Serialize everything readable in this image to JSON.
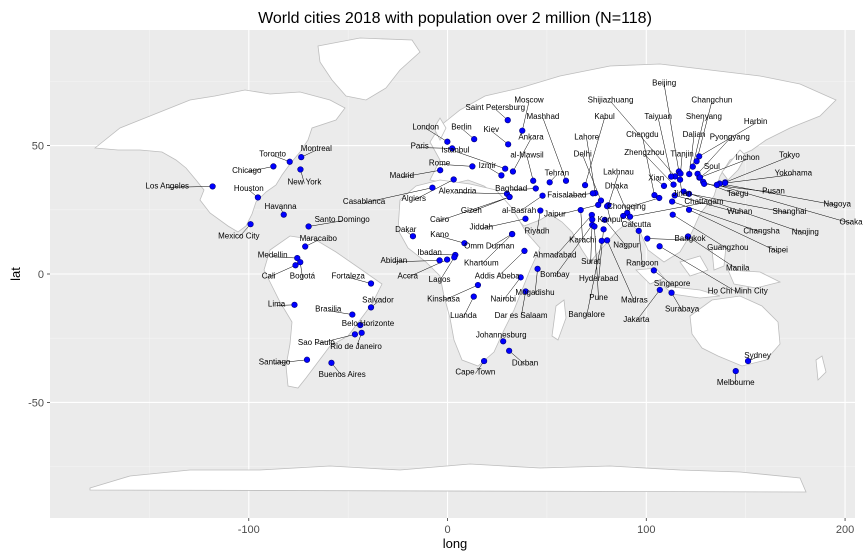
{
  "chart_data": {
    "type": "scatter",
    "title": "World cities 2018 with population over 2 million (N=118)",
    "xlabel": "long",
    "ylabel": "lat",
    "xlim": [
      -200,
      205
    ],
    "ylim": [
      -95,
      95
    ],
    "x_ticks": [
      -100,
      0,
      100,
      200
    ],
    "y_ticks": [
      -50,
      0,
      50
    ],
    "x_tick_labels": [
      "-100",
      "0",
      "100",
      "200"
    ],
    "y_tick_labels": [
      "-50",
      "0",
      "50"
    ],
    "panel_background": "#ebebeb",
    "grid": true,
    "land_color": "#ffffff",
    "border_color": "#bdbdbd",
    "point_color": "#0000ff",
    "points": [
      {
        "name": "Los Angeles",
        "x": -118.2,
        "y": 34.1,
        "lx": -141,
        "ly": 34.5
      },
      {
        "name": "Chicago",
        "x": -87.6,
        "y": 41.9,
        "lx": -101,
        "ly": 40.5
      },
      {
        "name": "Toronto",
        "x": -79.4,
        "y": 43.7,
        "lx": -88,
        "ly": 47
      },
      {
        "name": "Montreal",
        "x": -73.6,
        "y": 45.5,
        "lx": -66,
        "ly": 49
      },
      {
        "name": "New York",
        "x": -74.0,
        "y": 40.7,
        "lx": -72,
        "ly": 36
      },
      {
        "name": "Houston",
        "x": -95.4,
        "y": 29.8,
        "lx": -100,
        "ly": 33.5
      },
      {
        "name": "Havanna",
        "x": -82.4,
        "y": 23.1,
        "lx": -84,
        "ly": 26.5
      },
      {
        "name": "Mexico City",
        "x": -99.1,
        "y": 19.4,
        "lx": -105,
        "ly": 15
      },
      {
        "name": "Santo Domingo",
        "x": -69.9,
        "y": 18.5,
        "lx": -53,
        "ly": 21.5
      },
      {
        "name": "Maracaibo",
        "x": -71.6,
        "y": 10.7,
        "lx": -65,
        "ly": 14
      },
      {
        "name": "Medellin",
        "x": -75.6,
        "y": 6.2,
        "lx": -88,
        "ly": 7.5
      },
      {
        "name": "Bogotá",
        "x": -74.1,
        "y": 4.6,
        "lx": -73,
        "ly": -0.5
      },
      {
        "name": "Cali",
        "x": -76.5,
        "y": 3.4,
        "lx": -90,
        "ly": -0.5
      },
      {
        "name": "Lima",
        "x": -77.0,
        "y": -12.0,
        "lx": -86,
        "ly": -11.5
      },
      {
        "name": "Fortaleza",
        "x": -38.5,
        "y": -3.7,
        "lx": -50,
        "ly": -0.5
      },
      {
        "name": "Brasilia",
        "x": -47.9,
        "y": -15.8,
        "lx": -60,
        "ly": -13.5
      },
      {
        "name": "Salvador",
        "x": -38.5,
        "y": -13.0,
        "lx": -35,
        "ly": -10
      },
      {
        "name": "Belo Horizonte",
        "x": -43.9,
        "y": -19.9,
        "lx": -40,
        "ly": -19
      },
      {
        "name": "Rio de Janeiro",
        "x": -43.2,
        "y": -22.9,
        "lx": -46,
        "ly": -28
      },
      {
        "name": "Sao Paulo",
        "x": -46.6,
        "y": -23.5,
        "lx": -66,
        "ly": -26.5
      },
      {
        "name": "Santiago",
        "x": -70.7,
        "y": -33.4,
        "lx": -87,
        "ly": -34
      },
      {
        "name": "Buenos Aires",
        "x": -58.4,
        "y": -34.6,
        "lx": -53,
        "ly": -39
      },
      {
        "name": "London",
        "x": -0.1,
        "y": 51.5,
        "lx": -11,
        "ly": 57.5
      },
      {
        "name": "Paris",
        "x": 2.35,
        "y": 48.9,
        "lx": -14,
        "ly": 50
      },
      {
        "name": "Madrid",
        "x": -3.7,
        "y": 40.4,
        "lx": -23,
        "ly": 38.5
      },
      {
        "name": "Berlin",
        "x": 13.4,
        "y": 52.5,
        "lx": 7,
        "ly": 57.5
      },
      {
        "name": "Saint Petersburg",
        "x": 30.3,
        "y": 59.9,
        "lx": 24,
        "ly": 65
      },
      {
        "name": "Moscow",
        "x": 37.6,
        "y": 55.8,
        "lx": 41,
        "ly": 68
      },
      {
        "name": "Kiev",
        "x": 30.5,
        "y": 50.5,
        "lx": 22,
        "ly": 56.5
      },
      {
        "name": "Istanbul",
        "x": 29.0,
        "y": 41.0,
        "lx": 4,
        "ly": 48.5
      },
      {
        "name": "Rome",
        "x": 12.5,
        "y": 41.9,
        "lx": -4,
        "ly": 43.5
      },
      {
        "name": "Izmir",
        "x": 27.1,
        "y": 38.4,
        "lx": 20,
        "ly": 42.5
      },
      {
        "name": "Ankara",
        "x": 32.9,
        "y": 39.9,
        "lx": 42,
        "ly": 53.5
      },
      {
        "name": "Mashhad",
        "x": 59.6,
        "y": 36.3,
        "lx": 48,
        "ly": 61.5
      },
      {
        "name": "Kabul",
        "x": 69.2,
        "y": 34.6,
        "lx": 79,
        "ly": 61.5
      },
      {
        "name": "Shijiazhuang",
        "x": 114.5,
        "y": 38.0,
        "lx": 82,
        "ly": 68
      },
      {
        "name": "al-Mawsil",
        "x": 43.1,
        "y": 36.3,
        "lx": 40,
        "ly": 46.5
      },
      {
        "name": "Lahore",
        "x": 74.3,
        "y": 31.5,
        "lx": 70,
        "ly": 53.5
      },
      {
        "name": "Delhi",
        "x": 77.2,
        "y": 28.6,
        "lx": 68,
        "ly": 47
      },
      {
        "name": "Algiers",
        "x": 3.1,
        "y": 36.8,
        "lx": -17,
        "ly": 29.5
      },
      {
        "name": "Casablanca",
        "x": -7.6,
        "y": 33.6,
        "lx": -42,
        "ly": 28.5
      },
      {
        "name": "Alexandria",
        "x": 29.9,
        "y": 31.2,
        "lx": 5,
        "ly": 32.5
      },
      {
        "name": "Baghdad",
        "x": 44.4,
        "y": 33.3,
        "lx": 32,
        "ly": 33.5
      },
      {
        "name": "Tehran",
        "x": 51.4,
        "y": 35.7,
        "lx": 55,
        "ly": 39.5
      },
      {
        "name": "Faisalabad",
        "x": 73.1,
        "y": 31.4,
        "lx": 60,
        "ly": 31
      },
      {
        "name": "Lakhnau",
        "x": 80.9,
        "y": 26.8,
        "lx": 86,
        "ly": 40
      },
      {
        "name": "Dhaka",
        "x": 90.4,
        "y": 23.8,
        "lx": 85,
        "ly": 34.5
      },
      {
        "name": "Gizeh",
        "x": 31.2,
        "y": 30.0,
        "lx": 12,
        "ly": 25
      },
      {
        "name": "al-Basrah",
        "x": 47.8,
        "y": 30.5,
        "lx": 36,
        "ly": 25
      },
      {
        "name": "Jaipur",
        "x": 75.8,
        "y": 26.9,
        "lx": 54,
        "ly": 23.5
      },
      {
        "name": "Chongqing",
        "x": 106.5,
        "y": 29.6,
        "lx": 90,
        "ly": 26.5
      },
      {
        "name": "Kanpur",
        "x": 80.3,
        "y": 26.4,
        "lx": 82,
        "ly": 21.5
      },
      {
        "name": "Cairo",
        "x": 31.2,
        "y": 30.0,
        "lx": -4,
        "ly": 21.5
      },
      {
        "name": "Jiddah",
        "x": 39.2,
        "y": 21.5,
        "lx": 17,
        "ly": 18.5
      },
      {
        "name": "Riyadh",
        "x": 46.7,
        "y": 24.7,
        "lx": 45,
        "ly": 17
      },
      {
        "name": "Karachi",
        "x": 67.0,
        "y": 24.9,
        "lx": 68,
        "ly": 13.5
      },
      {
        "name": "Dakar",
        "x": -17.4,
        "y": 14.7,
        "lx": -21,
        "ly": 17.5
      },
      {
        "name": "Kano",
        "x": 8.5,
        "y": 12.0,
        "lx": -4,
        "ly": 15.5
      },
      {
        "name": "Omm Durman",
        "x": 32.5,
        "y": 15.6,
        "lx": 21,
        "ly": 11
      },
      {
        "name": "Khartoum",
        "x": 32.5,
        "y": 15.5,
        "lx": 17,
        "ly": 4.5
      },
      {
        "name": "Ibadan",
        "x": 3.9,
        "y": 7.4,
        "lx": -9,
        "ly": 8.5
      },
      {
        "name": "Abidjan",
        "x": -4.0,
        "y": 5.3,
        "lx": -27,
        "ly": 5.5
      },
      {
        "name": "Accra",
        "x": -0.2,
        "y": 5.6,
        "lx": -20,
        "ly": -0.5
      },
      {
        "name": "Lagos",
        "x": 3.4,
        "y": 6.5,
        "lx": -4,
        "ly": -2
      },
      {
        "name": "Addis Abeba",
        "x": 38.7,
        "y": 9.0,
        "lx": 25,
        "ly": -0.5
      },
      {
        "name": "Ahmadabad",
        "x": 72.6,
        "y": 23.0,
        "lx": 54,
        "ly": 7.5
      },
      {
        "name": "Surat",
        "x": 72.8,
        "y": 21.2,
        "lx": 72,
        "ly": 5
      },
      {
        "name": "Nagpur",
        "x": 79.1,
        "y": 21.1,
        "lx": 90,
        "ly": 11.5
      },
      {
        "name": "Calcutta",
        "x": 88.4,
        "y": 22.6,
        "lx": 95,
        "ly": 19.5
      },
      {
        "name": "Rangoon",
        "x": 96.2,
        "y": 16.8,
        "lx": 98,
        "ly": 4.5
      },
      {
        "name": "Hyderabad",
        "x": 78.5,
        "y": 17.4,
        "lx": 76,
        "ly": -1.5
      },
      {
        "name": "Bombay",
        "x": 72.8,
        "y": 19.1,
        "lx": 54,
        "ly": 0
      },
      {
        "name": "Pune",
        "x": 73.9,
        "y": 18.5,
        "lx": 76,
        "ly": -9
      },
      {
        "name": "Bangalore",
        "x": 77.6,
        "y": 12.9,
        "lx": 70,
        "ly": -15.5
      },
      {
        "name": "Madras",
        "x": 80.3,
        "y": 13.1,
        "lx": 94,
        "ly": -10
      },
      {
        "name": "Mogadishu",
        "x": 45.3,
        "y": 2.0,
        "lx": 44,
        "ly": -7
      },
      {
        "name": "Nairobi",
        "x": 36.8,
        "y": -1.3,
        "lx": 28,
        "ly": -9.5
      },
      {
        "name": "Kinshasa",
        "x": 15.3,
        "y": -4.3,
        "lx": -2,
        "ly": -9.5
      },
      {
        "name": "Dar es Salaam",
        "x": 39.3,
        "y": -6.8,
        "lx": 37,
        "ly": -16
      },
      {
        "name": "Luanda",
        "x": 13.2,
        "y": -8.8,
        "lx": 8,
        "ly": -16
      },
      {
        "name": "Johannesburg",
        "x": 28.0,
        "y": -26.2,
        "lx": 27,
        "ly": -23.5
      },
      {
        "name": "Durban",
        "x": 31.0,
        "y": -29.9,
        "lx": 39,
        "ly": -34.5
      },
      {
        "name": "Cape Town",
        "x": 18.4,
        "y": -33.9,
        "lx": 14,
        "ly": -38
      },
      {
        "name": "Beijing",
        "x": 116.4,
        "y": 39.9,
        "lx": 109,
        "ly": 74.5
      },
      {
        "name": "Changchun",
        "x": 125.3,
        "y": 43.9,
        "lx": 133,
        "ly": 68
      },
      {
        "name": "Taiyuan",
        "x": 112.5,
        "y": 37.9,
        "lx": 106,
        "ly": 61.5
      },
      {
        "name": "Shenyang",
        "x": 123.4,
        "y": 41.8,
        "lx": 129,
        "ly": 61.5
      },
      {
        "name": "Harbin",
        "x": 126.6,
        "y": 45.8,
        "lx": 155,
        "ly": 59.5
      },
      {
        "name": "Chengdu",
        "x": 104.1,
        "y": 30.7,
        "lx": 98,
        "ly": 54.5
      },
      {
        "name": "Dalian",
        "x": 121.6,
        "y": 38.9,
        "lx": 124,
        "ly": 54.5
      },
      {
        "name": "Pyongyang",
        "x": 125.8,
        "y": 39.0,
        "lx": 142,
        "ly": 53.5
      },
      {
        "name": "Zhengzhou",
        "x": 113.7,
        "y": 34.8,
        "lx": 99,
        "ly": 47.5
      },
      {
        "name": "Tianjin",
        "x": 117.2,
        "y": 39.1,
        "lx": 118,
        "ly": 47
      },
      {
        "name": "Inchon",
        "x": 126.7,
        "y": 37.5,
        "lx": 151,
        "ly": 45.5
      },
      {
        "name": "Tokyo",
        "x": 139.7,
        "y": 35.7,
        "lx": 172,
        "ly": 46.5
      },
      {
        "name": "Soul",
        "x": 127.0,
        "y": 37.6,
        "lx": 133,
        "ly": 42
      },
      {
        "name": "Xian",
        "x": 108.9,
        "y": 34.3,
        "lx": 105,
        "ly": 37.5
      },
      {
        "name": "Yokohama",
        "x": 139.6,
        "y": 35.4,
        "lx": 174,
        "ly": 39.5
      },
      {
        "name": "Jinan",
        "x": 117.0,
        "y": 36.7,
        "lx": 118,
        "ly": 31.5
      },
      {
        "name": "Taegu",
        "x": 128.6,
        "y": 35.9,
        "lx": 146,
        "ly": 31.5
      },
      {
        "name": "Pusan",
        "x": 129.1,
        "y": 35.1,
        "lx": 164,
        "ly": 32.5
      },
      {
        "name": "Nagoya",
        "x": 136.9,
        "y": 35.2,
        "lx": 196,
        "ly": 27.5
      },
      {
        "name": "Osaka",
        "x": 135.5,
        "y": 34.7,
        "lx": 203,
        "ly": 20.5
      },
      {
        "name": "Wuhan",
        "x": 114.3,
        "y": 30.6,
        "lx": 147,
        "ly": 24.5
      },
      {
        "name": "Shanghai",
        "x": 121.5,
        "y": 31.2,
        "lx": 172,
        "ly": 24.5
      },
      {
        "name": "Nanjing",
        "x": 118.8,
        "y": 32.1,
        "lx": 180,
        "ly": 16.5
      },
      {
        "name": "Chattagam",
        "x": 91.8,
        "y": 22.3,
        "lx": 129,
        "ly": 28.5
      },
      {
        "name": "Changsha",
        "x": 113.0,
        "y": 28.2,
        "lx": 158,
        "ly": 17
      },
      {
        "name": "Guangzhou",
        "x": 113.3,
        "y": 23.1,
        "lx": 141,
        "ly": 10.5
      },
      {
        "name": "Taipei",
        "x": 121.5,
        "y": 25.0,
        "lx": 166,
        "ly": 9.5
      },
      {
        "name": "Bangkok",
        "x": 100.5,
        "y": 13.8,
        "lx": 122,
        "ly": 14
      },
      {
        "name": "Manila",
        "x": 121.0,
        "y": 14.6,
        "lx": 146,
        "ly": 2.5
      },
      {
        "name": "Ho Chi Minh City",
        "x": 106.7,
        "y": 10.8,
        "lx": 146,
        "ly": -6.5
      },
      {
        "name": "Singapore",
        "x": 103.8,
        "y": 1.4,
        "lx": 113,
        "ly": -3.5
      },
      {
        "name": "Surabaya",
        "x": 112.7,
        "y": -7.3,
        "lx": 118,
        "ly": -13.5
      },
      {
        "name": "Jakarta",
        "x": 106.8,
        "y": -6.2,
        "lx": 95,
        "ly": -17.5
      },
      {
        "name": "Sydney",
        "x": 151.2,
        "y": -33.9,
        "lx": 156,
        "ly": -31.5
      },
      {
        "name": "Melbourne",
        "x": 145.0,
        "y": -37.8,
        "lx": 145,
        "ly": -42
      }
    ]
  }
}
